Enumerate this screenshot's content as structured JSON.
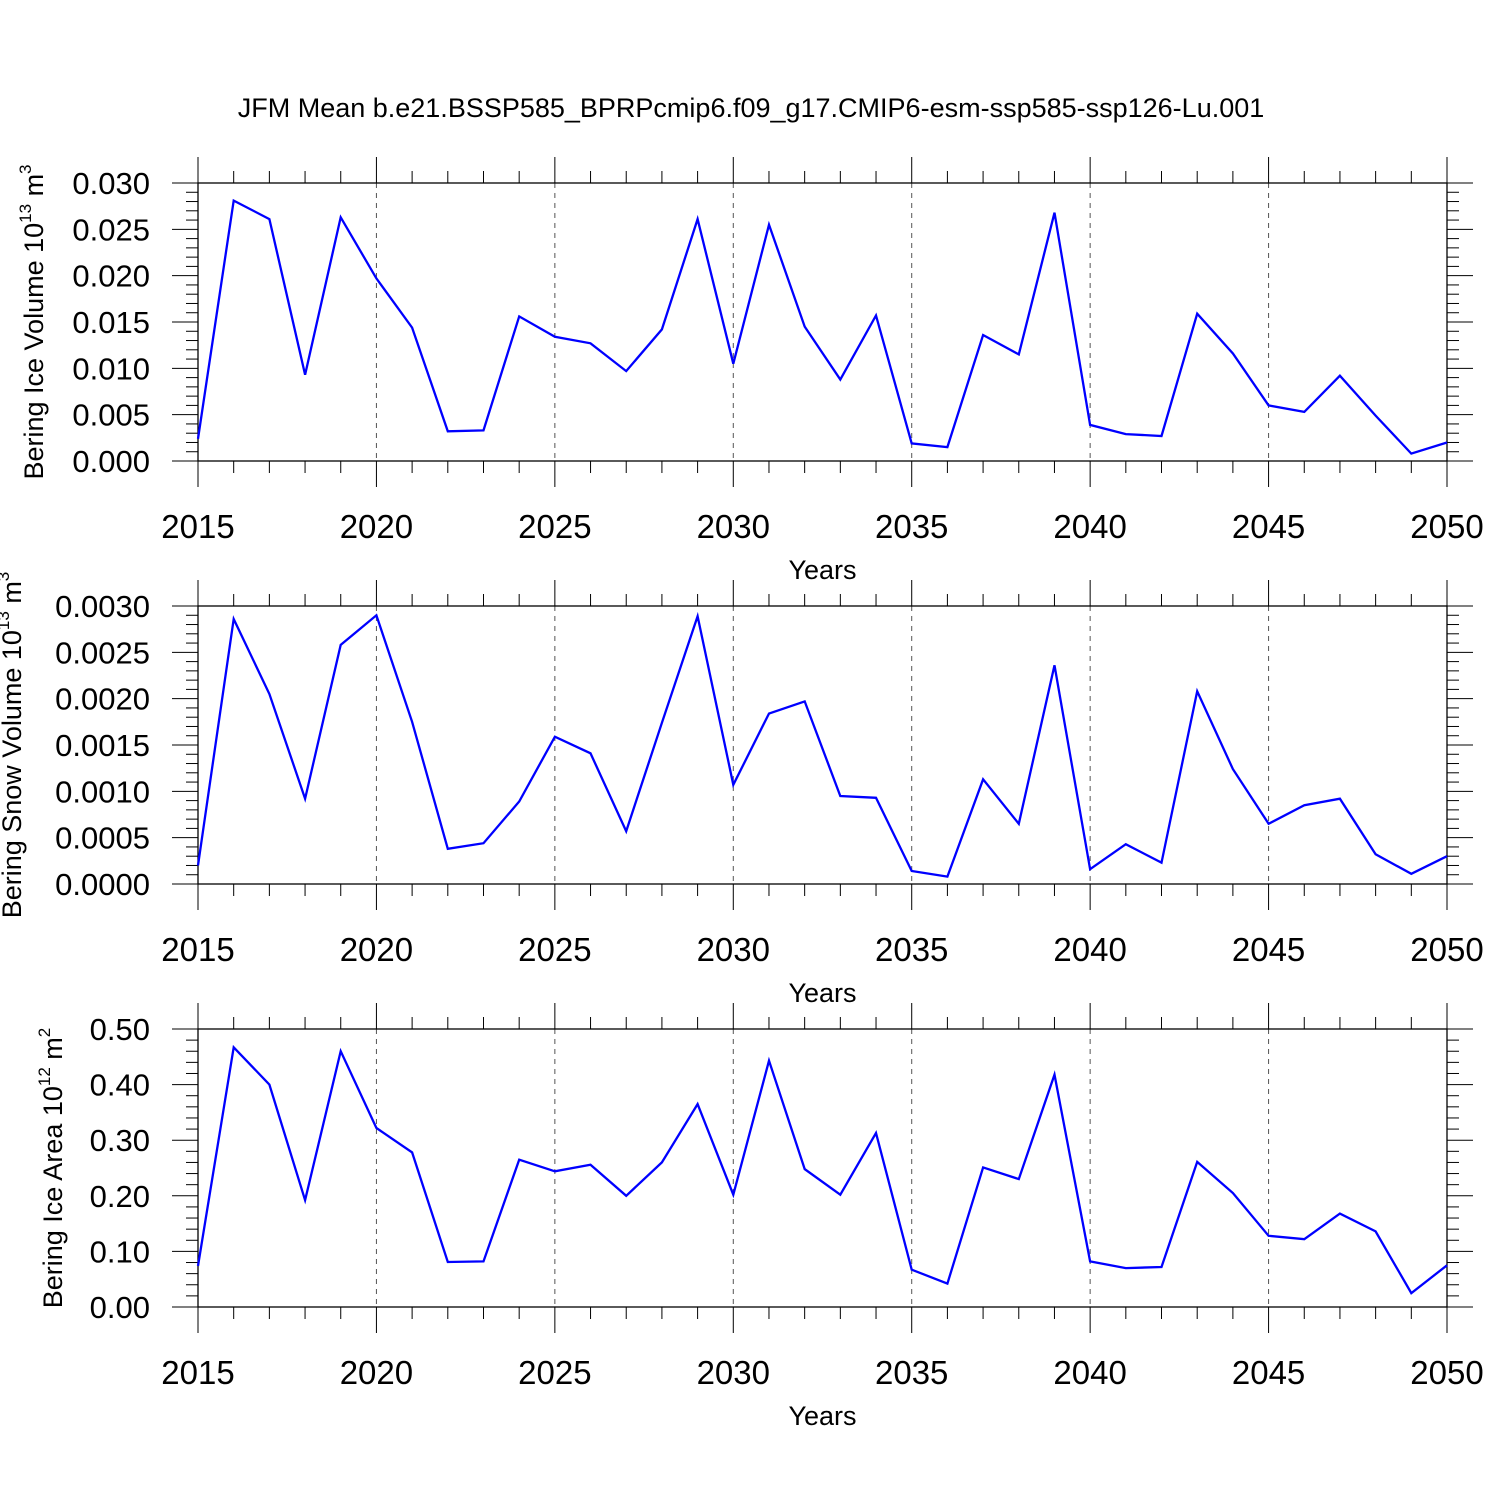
{
  "title": "JFM Mean b.e21.BSSP585_BPRPcmip6.f09_g17.CMIP6-esm-ssp585-ssp126-Lu.001",
  "line_color": "#0000ff",
  "chart_data": [
    {
      "type": "line",
      "xlabel": "Years",
      "ylabel": {
        "main": "Bering Ice Volume 10",
        "exp": "13",
        "unit": " m",
        "unit_exp": "3"
      },
      "xlim": [
        2015,
        2050
      ],
      "ylim": [
        0,
        0.03
      ],
      "yticks": [
        "0.000",
        "0.005",
        "0.010",
        "0.015",
        "0.020",
        "0.025",
        "0.030"
      ],
      "xticks": [
        "2015",
        "2020",
        "2025",
        "2030",
        "2035",
        "2040",
        "2045",
        "2050"
      ],
      "x": [
        2015,
        2016,
        2017,
        2018,
        2019,
        2020,
        2021,
        2022,
        2023,
        2024,
        2025,
        2026,
        2027,
        2028,
        2029,
        2030,
        2031,
        2032,
        2033,
        2034,
        2035,
        2036,
        2037,
        2038,
        2039,
        2040,
        2041,
        2042,
        2043,
        2044,
        2045,
        2046,
        2047,
        2048,
        2049,
        2050
      ],
      "values": [
        0.0024,
        0.0281,
        0.0261,
        0.0093,
        0.0263,
        0.0197,
        0.0144,
        0.0032,
        0.0033,
        0.0156,
        0.0134,
        0.0127,
        0.0097,
        0.0142,
        0.0261,
        0.0105,
        0.0255,
        0.0145,
        0.0088,
        0.0157,
        0.0019,
        0.0015,
        0.0136,
        0.0115,
        0.0268,
        0.0039,
        0.0029,
        0.0027,
        0.0159,
        0.0116,
        0.006,
        0.0053,
        0.0092,
        0.0049,
        0.0008,
        0.002
      ]
    },
    {
      "type": "line",
      "xlabel": "Years",
      "ylabel": {
        "main": "Bering Snow Volume 10",
        "exp": "13",
        "unit": " m",
        "unit_exp": "3"
      },
      "xlim": [
        2015,
        2050
      ],
      "ylim": [
        0,
        0.003
      ],
      "yticks": [
        "0.0000",
        "0.0005",
        "0.0010",
        "0.0015",
        "0.0020",
        "0.0025",
        "0.0030"
      ],
      "xticks": [
        "2015",
        "2020",
        "2025",
        "2030",
        "2035",
        "2040",
        "2045",
        "2050"
      ],
      "x": [
        2015,
        2016,
        2017,
        2018,
        2019,
        2020,
        2021,
        2022,
        2023,
        2024,
        2025,
        2026,
        2027,
        2028,
        2029,
        2030,
        2031,
        2032,
        2033,
        2034,
        2035,
        2036,
        2037,
        2038,
        2039,
        2040,
        2041,
        2042,
        2043,
        2044,
        2045,
        2046,
        2047,
        2048,
        2049,
        2050
      ],
      "values": [
        0.0002,
        0.00286,
        0.00205,
        0.00092,
        0.00258,
        0.0029,
        0.00175,
        0.00038,
        0.00044,
        0.00089,
        0.00159,
        0.00141,
        0.00057,
        0.00174,
        0.00289,
        0.00107,
        0.00184,
        0.00197,
        0.00095,
        0.00093,
        0.00014,
        8e-05,
        0.00113,
        0.00065,
        0.00236,
        0.00016,
        0.00043,
        0.00023,
        0.00208,
        0.00124,
        0.00065,
        0.00085,
        0.00092,
        0.00032,
        0.00011,
        0.0003
      ]
    },
    {
      "type": "line",
      "xlabel": "Years",
      "ylabel": {
        "main": "Bering Ice Area 10",
        "exp": "12",
        "unit": " m",
        "unit_exp": "2"
      },
      "xlim": [
        2015,
        2050
      ],
      "ylim": [
        0,
        0.5
      ],
      "yticks": [
        "0.00",
        "0.10",
        "0.20",
        "0.30",
        "0.40",
        "0.50"
      ],
      "xticks": [
        "2015",
        "2020",
        "2025",
        "2030",
        "2035",
        "2040",
        "2045",
        "2050"
      ],
      "x": [
        2015,
        2016,
        2017,
        2018,
        2019,
        2020,
        2021,
        2022,
        2023,
        2024,
        2025,
        2026,
        2027,
        2028,
        2029,
        2030,
        2031,
        2032,
        2033,
        2034,
        2035,
        2036,
        2037,
        2038,
        2039,
        2040,
        2041,
        2042,
        2043,
        2044,
        2045,
        2046,
        2047,
        2048,
        2049,
        2050
      ],
      "values": [
        0.074,
        0.467,
        0.4,
        0.192,
        0.46,
        0.322,
        0.278,
        0.081,
        0.082,
        0.265,
        0.244,
        0.256,
        0.2,
        0.26,
        0.365,
        0.202,
        0.443,
        0.248,
        0.202,
        0.313,
        0.067,
        0.042,
        0.251,
        0.23,
        0.418,
        0.082,
        0.07,
        0.072,
        0.261,
        0.205,
        0.128,
        0.122,
        0.168,
        0.136,
        0.025,
        0.075
      ]
    }
  ]
}
